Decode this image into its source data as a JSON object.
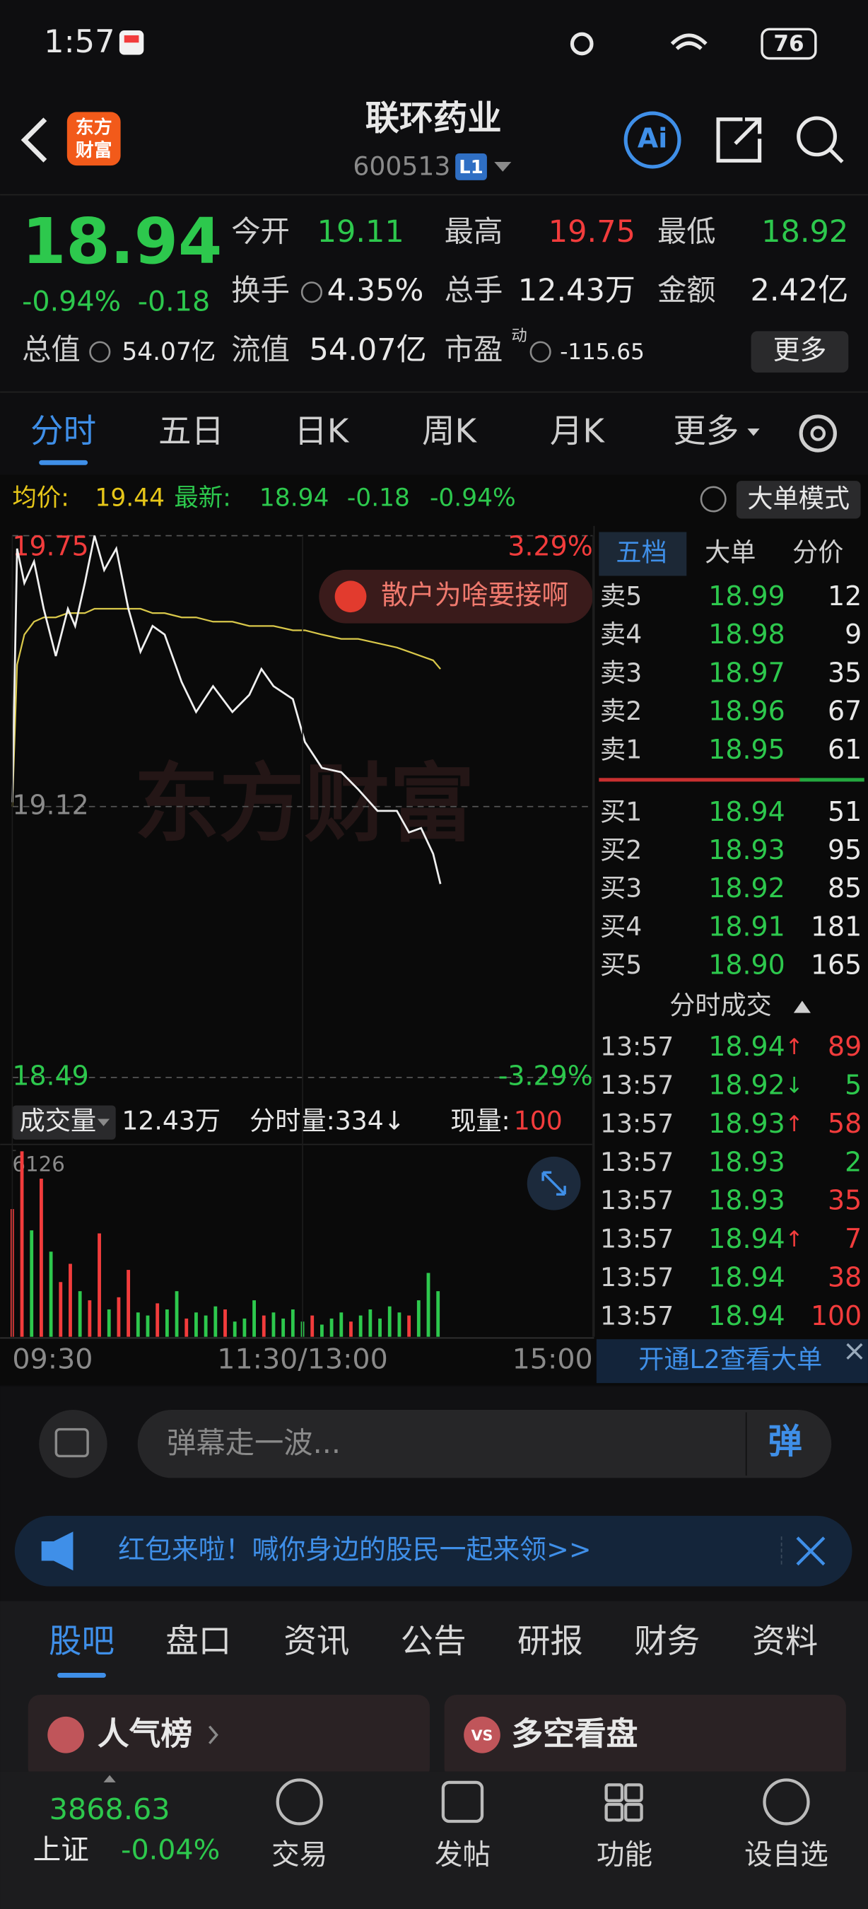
{
  "status_bar": {
    "time": "1:57",
    "battery": "76"
  },
  "header": {
    "logo_lines": [
      "东方",
      "财富"
    ],
    "title": "联环药业",
    "code": "600513",
    "level": "L1",
    "ai": "Ai"
  },
  "quote": {
    "price": "18.94",
    "change_pct": "-0.94%",
    "change": "-0.18",
    "rows": [
      [
        {
          "label": "今开",
          "value": "19.11",
          "color": "#2dc84d"
        },
        {
          "label": "最高",
          "value": "19.75",
          "color": "#f23c3c"
        },
        {
          "label": "最低",
          "value": "18.92",
          "color": "#2dc84d"
        }
      ],
      [
        {
          "label": "换手",
          "value": "4.35%",
          "color": "#e8e8e8"
        },
        {
          "label": "总手",
          "value": "12.43万",
          "color": "#e8e8e8"
        },
        {
          "label": "金额",
          "value": "2.42亿",
          "color": "#e8e8e8"
        }
      ]
    ],
    "row3": [
      {
        "label": "总值",
        "value": "54.07亿"
      },
      {
        "label": "流值",
        "value": "54.07亿"
      },
      {
        "label": "市盈",
        "sup": "动",
        "value": "-115.65"
      }
    ],
    "more": "更多"
  },
  "tabs": [
    "分时",
    "五日",
    "日K",
    "周K",
    "月K",
    "更多"
  ],
  "info": {
    "avg_label": "均价:",
    "avg": "19.44",
    "latest_label": "最新:",
    "latest": "18.94",
    "change": "-0.18",
    "change_pct": "-0.94%",
    "mode": "大单模式"
  },
  "chart_data": [
    {
      "type": "line",
      "watermark": "东方财富",
      "annotation": "散户为啥要接啊",
      "x": [
        0,
        2,
        5,
        9,
        13,
        18,
        23,
        26,
        30,
        34,
        38,
        43,
        48,
        53,
        58,
        63,
        70,
        76,
        83,
        91,
        98,
        103,
        108,
        116,
        121,
        128,
        136,
        143,
        151,
        159,
        164,
        169,
        174,
        177
      ],
      "xlim": [
        0,
        240
      ],
      "series": [
        {
          "color": "#f0f0f0",
          "values": [
            19.13,
            19.72,
            19.64,
            19.69,
            19.58,
            19.47,
            19.58,
            19.54,
            19.64,
            19.75,
            19.67,
            19.72,
            19.58,
            19.48,
            19.54,
            19.52,
            19.41,
            19.34,
            19.4,
            19.34,
            19.38,
            19.44,
            19.4,
            19.37,
            19.27,
            19.21,
            19.2,
            19.16,
            19.11,
            19.11,
            19.06,
            19.07,
            19.01,
            18.94
          ]
        },
        {
          "color": "#d9c84a",
          "values": [
            19.12,
            19.45,
            19.52,
            19.55,
            19.56,
            19.56,
            19.57,
            19.57,
            19.57,
            19.58,
            19.58,
            19.58,
            19.58,
            19.58,
            19.57,
            19.57,
            19.56,
            19.56,
            19.55,
            19.55,
            19.54,
            19.54,
            19.54,
            19.53,
            19.53,
            19.52,
            19.51,
            19.51,
            19.5,
            19.49,
            19.48,
            19.47,
            19.46,
            19.44
          ]
        }
      ],
      "ylim": [
        18.49,
        19.75
      ],
      "yticks": [
        19.75,
        19.12,
        18.49
      ],
      "ytick_colors": [
        "#f23c3c",
        "#8a8a8a",
        "#2dc84d"
      ],
      "y2lim": [
        -3.29,
        3.29
      ],
      "y2ticks": [
        {
          "value": 3.29,
          "label": "3.29%"
        },
        {
          "value": -3.29,
          "label": "-3.29%"
        }
      ],
      "y2tick_colors": [
        "#f23c3c",
        "#2dc84d"
      ]
    },
    {
      "type": "bar",
      "x": [
        0,
        4,
        8,
        12,
        16,
        20,
        24,
        28,
        32,
        36,
        40,
        44,
        48,
        52,
        56,
        60,
        64,
        68,
        72,
        76,
        80,
        84,
        88,
        92,
        96,
        100,
        104,
        108,
        112,
        116,
        120,
        124,
        128,
        132,
        136,
        140,
        144,
        148,
        152,
        156,
        160,
        164,
        168,
        172,
        176
      ],
      "xlim": [
        0,
        240
      ],
      "values": [
        4200,
        6100,
        3500,
        5200,
        2800,
        1800,
        2400,
        1500,
        1200,
        3400,
        900,
        1300,
        2200,
        800,
        700,
        1100,
        900,
        1500,
        600,
        800,
        700,
        1000,
        900,
        500,
        600,
        1200,
        700,
        800,
        600,
        900,
        500,
        700,
        400,
        600,
        800,
        500,
        700,
        900,
        600,
        1000,
        800,
        700,
        1200,
        2100,
        1500
      ],
      "colors": [
        "#f23c3c",
        "#f23c3c",
        "#2dc84d",
        "#f23c3c",
        "#2dc84d",
        "#f23c3c",
        "#f23c3c",
        "#2dc84d",
        "#f23c3c",
        "#f23c3c",
        "#2dc84d",
        "#f23c3c",
        "#f23c3c",
        "#2dc84d",
        "#2dc84d",
        "#f23c3c",
        "#2dc84d",
        "#2dc84d",
        "#f23c3c",
        "#2dc84d",
        "#2dc84d",
        "#2dc84d",
        "#f23c3c",
        "#2dc84d",
        "#2dc84d",
        "#2dc84d",
        "#f23c3c",
        "#2dc84d",
        "#2dc84d",
        "#2dc84d",
        "#2dc84d",
        "#f23c3c",
        "#2dc84d",
        "#2dc84d",
        "#2dc84d",
        "#f23c3c",
        "#2dc84d",
        "#2dc84d",
        "#2dc84d",
        "#2dc84d",
        "#2dc84d",
        "#f23c3c",
        "#2dc84d",
        "#2dc84d",
        "#2dc84d"
      ],
      "ylim": [
        0,
        6126
      ],
      "yticks": [
        6126
      ],
      "xticks": [
        {
          "value": 0,
          "label": "09:30"
        },
        {
          "value": 120,
          "label": "11:30/13:00"
        },
        {
          "value": 240,
          "label": "15:00"
        }
      ]
    }
  ],
  "volume_header": {
    "title": "成交量",
    "total": "12.43万",
    "minute": "分时量:334↓",
    "current_label": "现量:",
    "current": "100"
  },
  "order_book": {
    "tabs": [
      "五档",
      "大单",
      "分价"
    ],
    "asks": [
      [
        "卖5",
        "18.99",
        "12"
      ],
      [
        "卖4",
        "18.98",
        "9"
      ],
      [
        "卖3",
        "18.97",
        "35"
      ],
      [
        "卖2",
        "18.96",
        "67"
      ],
      [
        "卖1",
        "18.95",
        "61"
      ]
    ],
    "bids": [
      [
        "买1",
        "18.94",
        "51"
      ],
      [
        "买2",
        "18.93",
        "95"
      ],
      [
        "买3",
        "18.92",
        "85"
      ],
      [
        "买4",
        "18.91",
        "181"
      ],
      [
        "买5",
        "18.90",
        "165"
      ]
    ],
    "trades_title": "分时成交",
    "trades": [
      {
        "time": "13:57",
        "price": "18.94",
        "arrow": "↑",
        "volume": "89",
        "color": "#f23c3c"
      },
      {
        "time": "13:57",
        "price": "18.92",
        "arrow": "↓",
        "volume": "5",
        "color": "#2dc84d"
      },
      {
        "time": "13:57",
        "price": "18.93",
        "arrow": "↑",
        "volume": "58",
        "color": "#f23c3c"
      },
      {
        "time": "13:57",
        "price": "18.93",
        "volume": "2",
        "color": "#2dc84d"
      },
      {
        "time": "13:57",
        "price": "18.93",
        "volume": "35",
        "color": "#f23c3c"
      },
      {
        "time": "13:57",
        "price": "18.94",
        "arrow": "↑",
        "volume": "7",
        "color": "#f23c3c"
      },
      {
        "time": "13:57",
        "price": "18.94",
        "volume": "38",
        "color": "#f23c3c"
      },
      {
        "time": "13:57",
        "price": "18.94",
        "volume": "100",
        "color": "#f23c3c"
      }
    ],
    "l2": "开通L2查看大单"
  },
  "comment": {
    "placeholder": "弹幕走一波...",
    "button": "弹"
  },
  "banner": "红包来啦！喊你身边的股民一起来领>>",
  "bottom_tabs": [
    "股吧",
    "盘口",
    "资讯",
    "公告",
    "研报",
    "财务",
    "资料"
  ],
  "cards": [
    {
      "title": "人气榜"
    },
    {
      "icon": "VS",
      "title": "多空看盘"
    }
  ],
  "nav": {
    "index_value": "3868.63",
    "index_name": "上证",
    "index_change": "-0.04%",
    "items": [
      "交易",
      "发帖",
      "功能",
      "设自选"
    ]
  }
}
